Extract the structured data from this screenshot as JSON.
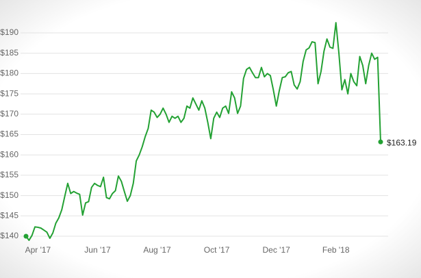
{
  "chart_data": {
    "type": "line",
    "categories": [
      null,
      null,
      null,
      null,
      "Apr '17",
      null,
      null,
      null,
      null,
      null,
      null,
      null,
      null,
      null,
      null,
      null,
      null,
      null,
      null,
      null,
      null,
      null,
      null,
      null,
      "Jun '17",
      null,
      null,
      null,
      null,
      null,
      null,
      null,
      null,
      null,
      null,
      null,
      null,
      null,
      null,
      null,
      null,
      null,
      null,
      null,
      "Aug '17",
      null,
      null,
      null,
      null,
      null,
      null,
      null,
      null,
      null,
      null,
      null,
      null,
      null,
      null,
      null,
      null,
      null,
      null,
      null,
      "Oct '17",
      null,
      null,
      null,
      null,
      null,
      null,
      null,
      null,
      null,
      null,
      null,
      null,
      null,
      null,
      null,
      null,
      null,
      null,
      null,
      "Dec '17",
      null,
      null,
      null,
      null,
      null,
      null,
      null,
      null,
      null,
      null,
      null,
      null,
      null,
      null,
      null,
      null,
      null,
      null,
      null,
      "Feb '18",
      null,
      null,
      null,
      null,
      null,
      null,
      null,
      null,
      null,
      null,
      null,
      null,
      null,
      null,
      null
    ],
    "series": [
      {
        "color": "#23a133",
        "values": [
          140,
          139,
          140.2,
          142.3,
          142.2,
          142,
          141.5,
          141,
          139.5,
          140.8,
          143.2,
          144.5,
          146.5,
          149.8,
          153,
          150.5,
          151,
          150.6,
          150.3,
          145.2,
          148.2,
          148.5,
          152,
          153,
          152.5,
          152.2,
          154.5,
          149.5,
          149.2,
          150.5,
          151.2,
          154.8,
          153.5,
          151,
          148.6,
          150,
          153,
          158.5,
          160,
          162,
          164.5,
          166.5,
          171,
          170.5,
          169.2,
          170,
          171.5,
          170,
          168,
          169.5,
          169,
          169.5,
          168,
          169,
          172,
          171.5,
          174,
          172.5,
          171,
          173.3,
          171.5,
          168,
          164,
          169,
          170.5,
          169.2,
          171.5,
          172,
          170.2,
          175.5,
          174,
          170.2,
          172,
          178.8,
          181,
          181.5,
          180.2,
          179,
          179,
          181.5,
          179.2,
          180,
          179.5,
          176,
          172,
          175.8,
          179,
          179.2,
          180.2,
          180.5,
          177.2,
          176.2,
          178,
          183,
          185.8,
          186.3,
          187.8,
          187.6,
          177.5,
          180.5,
          185.5,
          188.5,
          186.5,
          186.2,
          192.5,
          185,
          176,
          178.5,
          175,
          180,
          178,
          177,
          184.2,
          182,
          177.5,
          182,
          185,
          183.5,
          184,
          163.19
        ],
        "value_labels": [
          null,
          null,
          null,
          null,
          null,
          null,
          null,
          null,
          null,
          null,
          null,
          null,
          null,
          null,
          null,
          null,
          null,
          null,
          null,
          null,
          null,
          null,
          null,
          null,
          null,
          null,
          null,
          null,
          null,
          null,
          null,
          null,
          null,
          null,
          null,
          null,
          null,
          null,
          null,
          null,
          null,
          null,
          null,
          null,
          null,
          null,
          null,
          null,
          null,
          null,
          null,
          null,
          null,
          null,
          null,
          null,
          null,
          null,
          null,
          null,
          null,
          null,
          null,
          null,
          null,
          null,
          null,
          null,
          null,
          null,
          null,
          null,
          null,
          null,
          null,
          null,
          null,
          null,
          null,
          null,
          null,
          null,
          null,
          null,
          null,
          null,
          null,
          null,
          null,
          null,
          null,
          null,
          null,
          null,
          null,
          null,
          null,
          null,
          null,
          null,
          null,
          null,
          null,
          null,
          null,
          null,
          null,
          null,
          null,
          null,
          null,
          null,
          null,
          null,
          null,
          null,
          null,
          null,
          null,
          "$163.19"
        ]
      }
    ],
    "ylim": [
      140,
      190
    ],
    "yticks": [
      {
        "value": 140,
        "label": "$140"
      },
      {
        "value": 145,
        "label": "$145"
      },
      {
        "value": 150,
        "label": "$150"
      },
      {
        "value": 155,
        "label": "$155"
      },
      {
        "value": 160,
        "label": "$160"
      },
      {
        "value": 165,
        "label": "$165"
      },
      {
        "value": 170,
        "label": "$170"
      },
      {
        "value": 175,
        "label": "$175"
      },
      {
        "value": 180,
        "label": "$180"
      },
      {
        "value": 185,
        "label": "$185"
      },
      {
        "value": 190,
        "label": "$190"
      }
    ],
    "grid": true
  }
}
